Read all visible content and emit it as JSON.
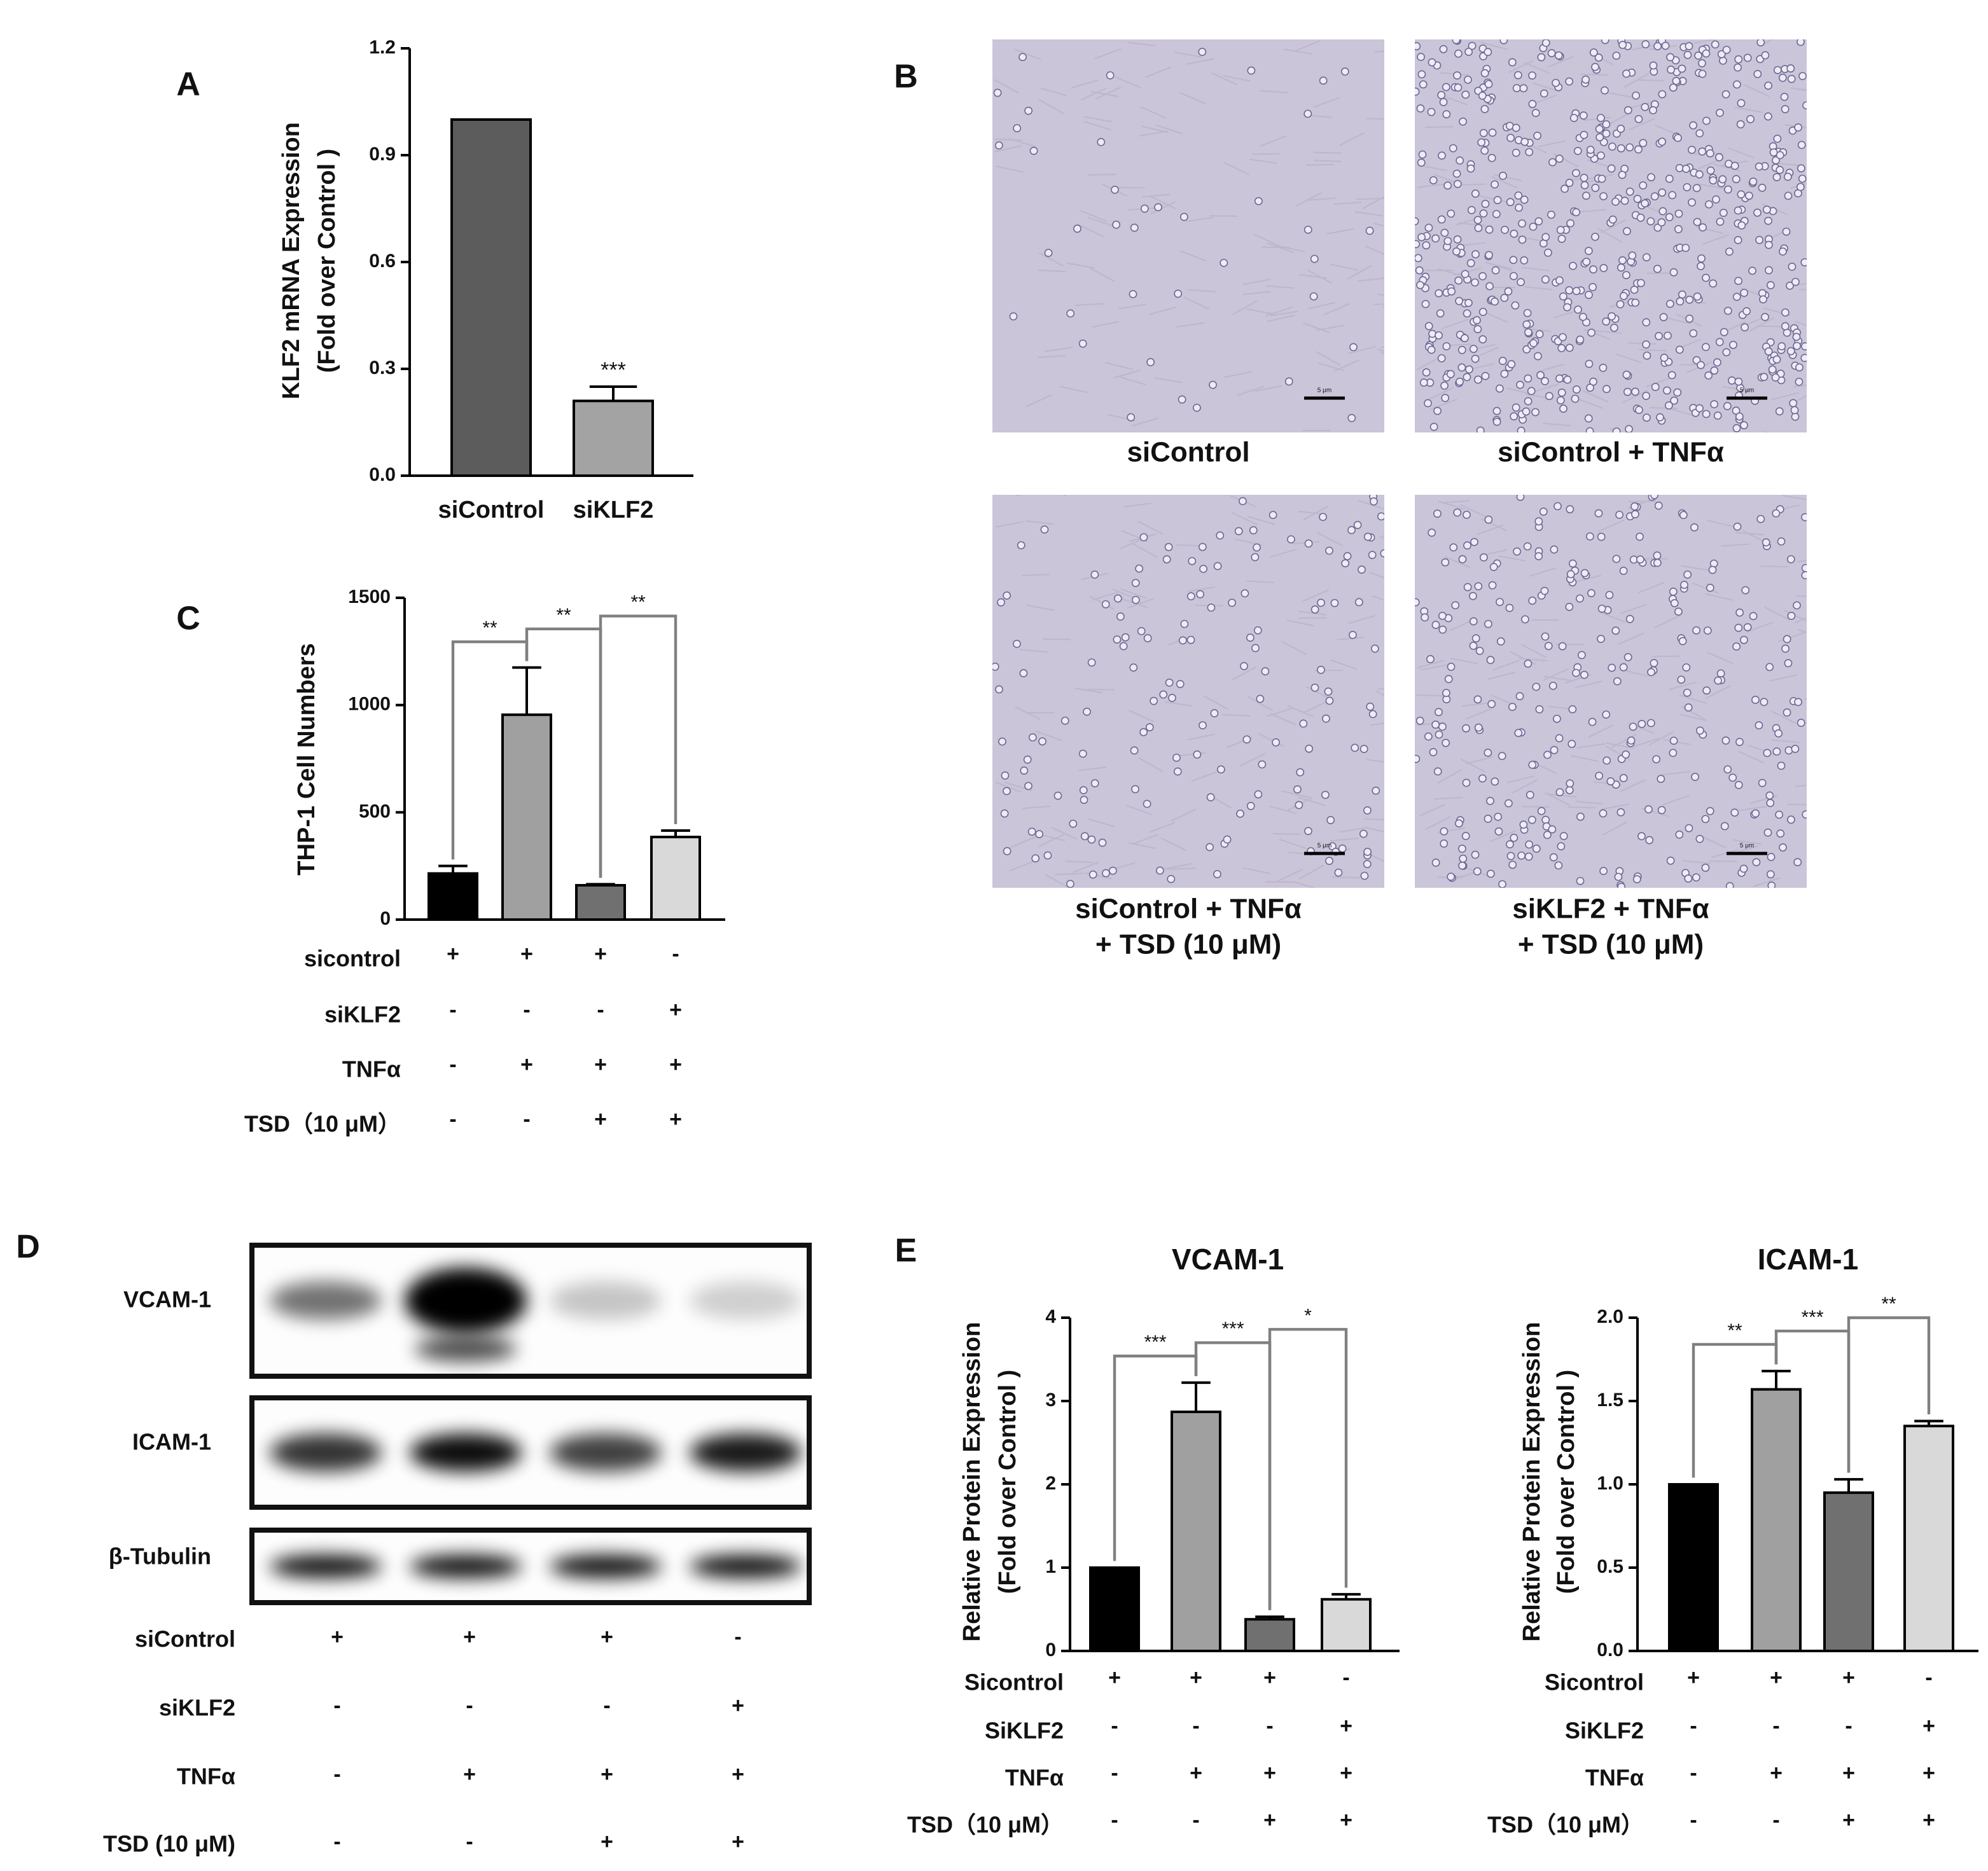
{
  "chart_data": [
    {
      "type": "bar",
      "panel": "A",
      "ylabel": [
        "KLF2 mRNA Expression",
        "(Fold over Control )"
      ],
      "categories": [
        "siControl",
        "siKLF2"
      ],
      "values": [
        1.0,
        0.21
      ],
      "errors": [
        0,
        0.04
      ],
      "annotations": [
        null,
        "***"
      ],
      "colors": [
        "#5c5c5c",
        "#a3a3a3"
      ],
      "ylim": [
        0,
        1.2
      ],
      "yticks": [
        {
          "value": 0,
          "label": "0.0"
        },
        {
          "value": 0.3,
          "label": "0.3"
        },
        {
          "value": 0.6,
          "label": "0.6"
        },
        {
          "value": 0.9,
          "label": "0.9"
        },
        {
          "value": 1.2,
          "label": "1.2"
        }
      ]
    },
    {
      "type": "bar",
      "panel": "C",
      "ylabel": [
        "THP-1 Cell Numbers"
      ],
      "values": [
        215,
        955,
        160,
        385
      ],
      "errors": [
        35,
        220,
        5,
        30
      ],
      "colors": [
        "#000000",
        "#a0a0a0",
        "#707070",
        "#d9d9d9"
      ],
      "ylim": [
        0,
        1500
      ],
      "yticks": [
        0,
        500,
        1000,
        1500
      ],
      "brackets": [
        {
          "from": 0,
          "to": 1,
          "label": "**"
        },
        {
          "from": 1,
          "to": 2,
          "label": "**"
        },
        {
          "from": 2,
          "to": 3,
          "label": "**"
        }
      ],
      "conditions": [
        {
          "label": "sicontrol",
          "signs": [
            "+",
            "+",
            "+",
            "-"
          ]
        },
        {
          "label": "siKLF2",
          "signs": [
            "-",
            "-",
            "-",
            "+"
          ]
        },
        {
          "label": "TNFα",
          "signs": [
            "-",
            "+",
            "+",
            "+"
          ]
        },
        {
          "label": "TSD（10 μM）",
          "signs": [
            "-",
            "-",
            "+",
            "+"
          ]
        }
      ]
    },
    {
      "type": "bar",
      "panel": "E",
      "title": "VCAM-1",
      "ylabel": [
        "Relative Protein Expression",
        "(Fold over Control )"
      ],
      "values": [
        1.0,
        2.87,
        0.38,
        0.62
      ],
      "errors": [
        0,
        0.35,
        0.03,
        0.06
      ],
      "colors": [
        "#000000",
        "#a0a0a0",
        "#707070",
        "#d9d9d9"
      ],
      "ylim": [
        0,
        4
      ],
      "yticks": [
        0,
        1,
        2,
        3,
        4
      ],
      "brackets": [
        {
          "from": 0,
          "to": 1,
          "label": "***"
        },
        {
          "from": 1,
          "to": 2,
          "label": "***"
        },
        {
          "from": 2,
          "to": 3,
          "label": "*"
        }
      ],
      "conditions": [
        {
          "label": "Sicontrol",
          "signs": [
            "+",
            "+",
            "+",
            "-"
          ]
        },
        {
          "label": "SiKLF2",
          "signs": [
            "-",
            "-",
            "-",
            "+"
          ]
        },
        {
          "label": "TNFα",
          "signs": [
            "-",
            "+",
            "+",
            "+"
          ]
        },
        {
          "label": "TSD（10 μM）",
          "signs": [
            "-",
            "-",
            "+",
            "+"
          ]
        }
      ]
    },
    {
      "type": "bar",
      "title": "ICAM-1",
      "ylabel": [
        "Relative Protein Expression",
        "(Fold over Control )"
      ],
      "values": [
        1.0,
        1.57,
        0.95,
        1.35
      ],
      "errors": [
        0,
        0.11,
        0.08,
        0.03
      ],
      "colors": [
        "#000000",
        "#a0a0a0",
        "#707070",
        "#d9d9d9"
      ],
      "ylim": [
        0,
        2
      ],
      "yticks": [
        {
          "value": 0,
          "label": "0.0"
        },
        {
          "value": 0.5,
          "label": "0.5"
        },
        {
          "value": 1,
          "label": "1.0"
        },
        {
          "value": 1.5,
          "label": "1.5"
        },
        {
          "value": 2,
          "label": "2.0"
        }
      ],
      "brackets": [
        {
          "from": 0,
          "to": 1,
          "label": "**"
        },
        {
          "from": 1,
          "to": 2,
          "label": "***"
        },
        {
          "from": 2,
          "to": 3,
          "label": "**"
        }
      ],
      "conditions": [
        {
          "label": "Sicontrol",
          "signs": [
            "+",
            "+",
            "+",
            "-"
          ]
        },
        {
          "label": "SiKLF2",
          "signs": [
            "-",
            "-",
            "-",
            "+"
          ]
        },
        {
          "label": "TNFα",
          "signs": [
            "-",
            "+",
            "+",
            "+"
          ]
        },
        {
          "label": "TSD（10 μM）",
          "signs": [
            "-",
            "-",
            "+",
            "+"
          ]
        }
      ]
    }
  ],
  "panel_b": {
    "panel": "B",
    "images": [
      {
        "caption": [
          "siControl"
        ]
      },
      {
        "caption": [
          "siControl + TNFα"
        ]
      },
      {
        "caption": [
          "siControl + TNFα",
          "+ TSD (10 μM)"
        ]
      },
      {
        "caption": [
          "siKLF2 + TNFα",
          "+ TSD (10 μM)"
        ]
      }
    ],
    "scale_bar": "5 μm"
  },
  "panel_d": {
    "panel": "D",
    "blots": [
      "VCAM-1",
      "ICAM-1",
      "β-Tubulin"
    ],
    "conditions": [
      {
        "label": "siControl",
        "signs": [
          "+",
          "+",
          "+",
          "-"
        ]
      },
      {
        "label": "siKLF2",
        "signs": [
          "-",
          "-",
          "-",
          "+"
        ]
      },
      {
        "label": "TNFα",
        "signs": [
          "-",
          "+",
          "+",
          "+"
        ]
      },
      {
        "label": "TSD (10 μM)",
        "signs": [
          "-",
          "-",
          "+",
          "+"
        ]
      }
    ]
  }
}
